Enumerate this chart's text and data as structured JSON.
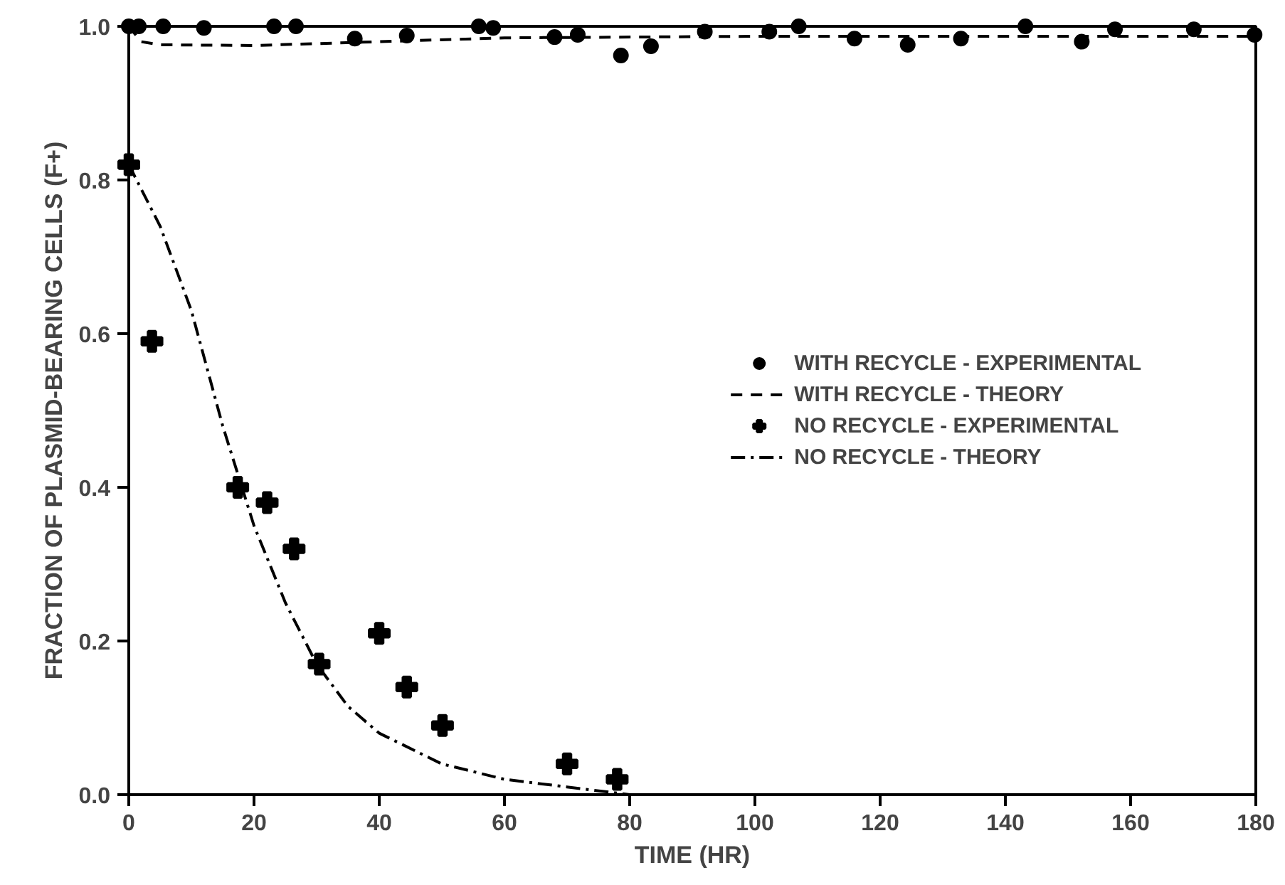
{
  "chart_data": {
    "type": "scatter",
    "xlabel": "TIME (HR)",
    "ylabel": "FRACTION OF PLASMID-BEARING CELLS (F+)",
    "xlim": [
      0,
      180
    ],
    "ylim": [
      0,
      1.0
    ],
    "xticks": [
      0,
      20,
      40,
      60,
      80,
      100,
      120,
      140,
      160,
      180
    ],
    "yticks": [
      {
        "value": 0,
        "label": "0.0"
      },
      {
        "value": 0.2,
        "label": "0.2"
      },
      {
        "value": 0.4,
        "label": "0.4"
      },
      {
        "value": 0.6,
        "label": "0.6"
      },
      {
        "value": 0.8,
        "label": "0.8"
      },
      {
        "value": 1.0,
        "label": "1.0"
      }
    ],
    "grid": false,
    "legend": "right",
    "series": [
      {
        "name": "WITH RECYCLE - EXPERIMENTAL",
        "marker": "circle",
        "color": "#000000",
        "x": [
          0,
          1.6,
          5.5,
          12,
          23.2,
          26.7,
          36.1,
          44.4,
          55.9,
          58.2,
          68,
          71.7,
          78.6,
          83.4,
          92,
          102.3,
          107,
          115.9,
          124.4,
          132.9,
          143.2,
          152.2,
          157.5,
          170.1,
          179.8
        ],
        "values": [
          1.0,
          1.0,
          1.0,
          0.998,
          1.0,
          1.0,
          0.984,
          0.988,
          1.0,
          0.998,
          0.986,
          0.989,
          0.962,
          0.974,
          0.993,
          0.993,
          1.0,
          0.984,
          0.976,
          0.984,
          1.0,
          0.98,
          0.996,
          0.996,
          0.989
        ]
      },
      {
        "name": "WITH RECYCLE - THEORY",
        "type": "line",
        "line_style": "dashed",
        "color": "#000000",
        "x": [
          0,
          2,
          5,
          20,
          40,
          60,
          100,
          140,
          180
        ],
        "values": [
          1.0,
          0.98,
          0.976,
          0.975,
          0.98,
          0.985,
          0.987,
          0.987,
          0.987
        ]
      },
      {
        "name": "NO RECYCLE - EXPERIMENTAL",
        "marker": "cross",
        "color": "#000000",
        "x": [
          0,
          3.7,
          17.4,
          22.1,
          26.4,
          30.4,
          40,
          44.4,
          50.1,
          70,
          78
        ],
        "values": [
          0.82,
          0.59,
          0.4,
          0.38,
          0.32,
          0.17,
          0.21,
          0.14,
          0.09,
          0.04,
          0.02
        ]
      },
      {
        "name": "NO RECYCLE - THEORY",
        "type": "line",
        "line_style": "dashdot",
        "color": "#000000",
        "x": [
          0,
          5,
          10,
          15,
          20,
          25,
          30,
          35,
          40,
          50,
          60,
          70,
          80
        ],
        "values": [
          0.82,
          0.74,
          0.63,
          0.48,
          0.35,
          0.25,
          0.17,
          0.115,
          0.08,
          0.04,
          0.02,
          0.01,
          0.0
        ]
      }
    ]
  }
}
